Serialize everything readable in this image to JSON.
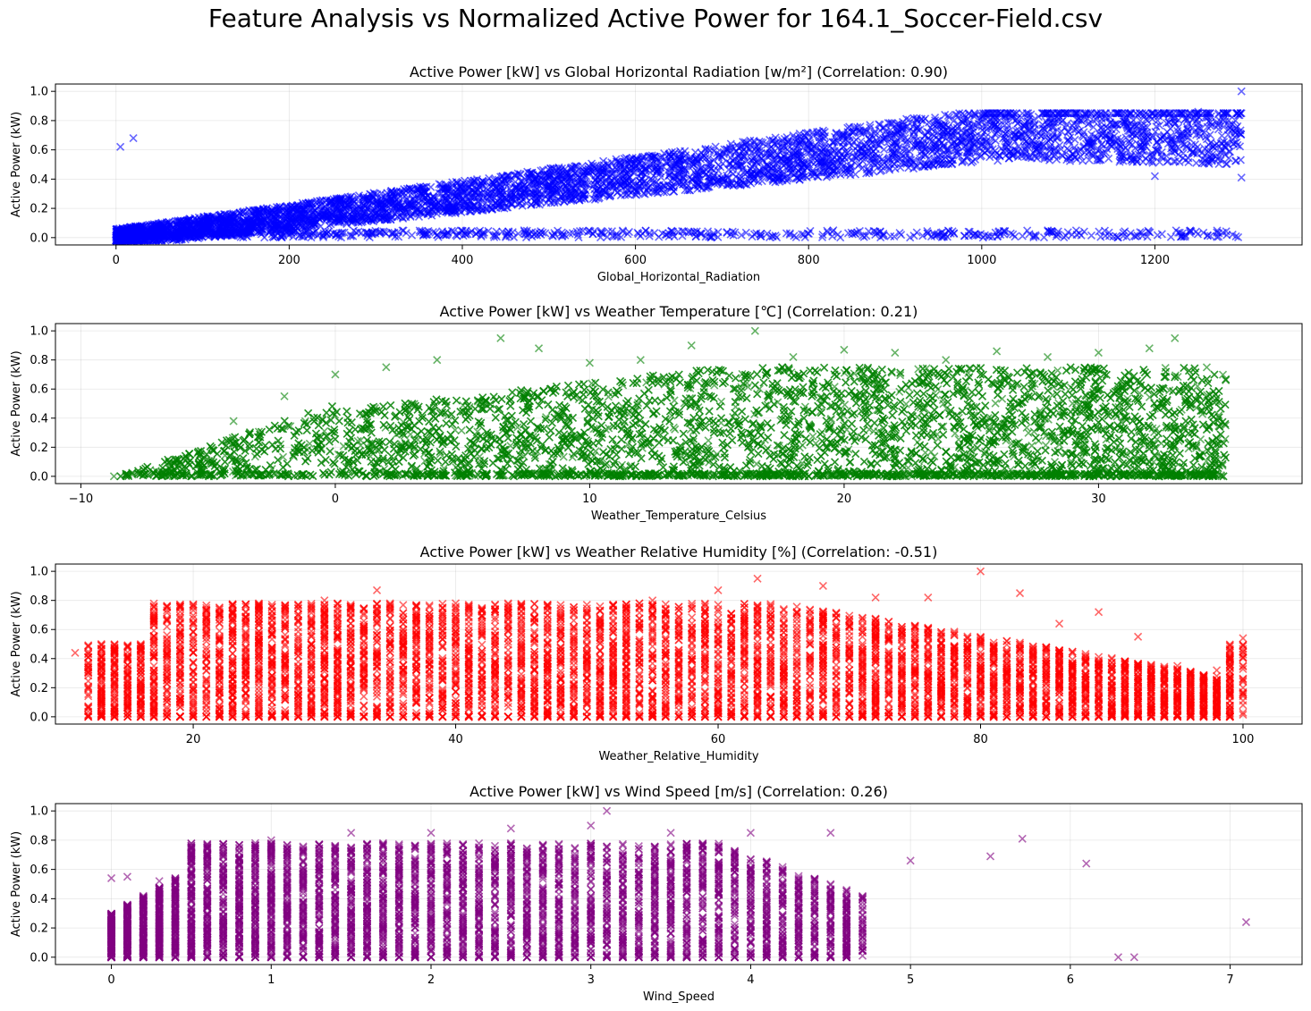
{
  "figure": {
    "suptitle": "Feature Analysis vs Normalized Active Power for 164.1_Soccer-Field.csv"
  },
  "chart_data": [
    {
      "type": "scatter",
      "title": "Active Power [kW] vs Global Horizontal Radiation [w/m²] (Correlation: 0.90)",
      "xlabel": "Global_Horizontal_Radiation",
      "ylabel": "Active Power (kW)",
      "xlim": [
        -70,
        1370
      ],
      "ylim": [
        -0.05,
        1.05
      ],
      "xticks": [
        0,
        200,
        400,
        600,
        800,
        1000,
        1200
      ],
      "yticks": [
        0.0,
        0.2,
        0.4,
        0.6,
        0.8,
        1.0
      ],
      "marker": "x",
      "color": "#0000ff",
      "grid": true,
      "series": [
        {
          "x": [
            0,
            5,
            20,
            50,
            100,
            150,
            200,
            250,
            300,
            350,
            400,
            450,
            500,
            550,
            600,
            650,
            700,
            750,
            800,
            850,
            900,
            950,
            1000,
            1050,
            1100,
            1150,
            1200,
            1250,
            1300,
            1300
          ],
          "y": [
            0.0,
            0.62,
            0.68,
            0.05,
            0.09,
            0.13,
            0.17,
            0.21,
            0.25,
            0.29,
            0.33,
            0.37,
            0.41,
            0.45,
            0.49,
            0.52,
            0.55,
            0.58,
            0.61,
            0.63,
            0.65,
            0.67,
            0.69,
            0.71,
            0.72,
            0.74,
            0.42,
            0.86,
            1.0,
            0.41
          ]
        }
      ]
    },
    {
      "type": "scatter",
      "title": "Active Power [kW] vs Weather Temperature [℃] (Correlation: 0.21)",
      "xlabel": "Weather_Temperature_Celsius",
      "ylabel": "Active Power (kW)",
      "xlim": [
        -11,
        38
      ],
      "ylim": [
        -0.05,
        1.05
      ],
      "xticks": [
        -10,
        0,
        10,
        20,
        30
      ],
      "yticks": [
        0.0,
        0.2,
        0.4,
        0.6,
        0.8,
        1.0
      ],
      "marker": "x",
      "color": "#008000",
      "grid": true,
      "series": [
        {
          "x": [
            -8.7,
            -6,
            -4,
            -2,
            0,
            2,
            4,
            6.5,
            8,
            10,
            12,
            14,
            16.5,
            18,
            20,
            22,
            24,
            26,
            28,
            30,
            32,
            33,
            35
          ],
          "y": [
            0.0,
            0.05,
            0.38,
            0.55,
            0.7,
            0.75,
            0.8,
            0.95,
            0.88,
            0.78,
            0.8,
            0.9,
            1.0,
            0.82,
            0.87,
            0.85,
            0.8,
            0.86,
            0.82,
            0.85,
            0.88,
            0.95,
            0.66
          ]
        }
      ]
    },
    {
      "type": "scatter",
      "title": "Active Power [kW] vs Weather Relative Humidity [%] (Correlation: -0.51)",
      "xlabel": "Weather_Relative_Humidity",
      "ylabel": "Active Power (kW)",
      "xlim": [
        9.5,
        104.5
      ],
      "ylim": [
        -0.05,
        1.05
      ],
      "xticks": [
        20,
        40,
        60,
        80,
        100
      ],
      "yticks": [
        0.0,
        0.2,
        0.4,
        0.6,
        0.8,
        1.0
      ],
      "marker": "x",
      "color": "#ff0000",
      "grid": true,
      "series": [
        {
          "x": [
            11,
            13,
            15,
            17,
            20,
            25,
            30,
            34,
            40,
            45,
            50,
            55,
            60,
            63,
            68,
            72,
            76,
            80,
            83,
            86,
            89,
            92,
            95,
            98,
            100
          ],
          "y": [
            0.44,
            0.5,
            0.0,
            0.7,
            0.76,
            0.78,
            0.8,
            0.87,
            0.78,
            0.77,
            0.77,
            0.8,
            0.87,
            0.95,
            0.9,
            0.82,
            0.82,
            1.0,
            0.85,
            0.64,
            0.72,
            0.55,
            0.35,
            0.32,
            0.54
          ]
        }
      ]
    },
    {
      "type": "scatter",
      "title": "Active Power [kW] vs Wind Speed [m/s] (Correlation: 0.26)",
      "xlabel": "Wind_Speed",
      "ylabel": "Active Power (kW)",
      "xlim": [
        -0.35,
        7.45
      ],
      "ylim": [
        -0.05,
        1.05
      ],
      "xticks": [
        0,
        1,
        2,
        3,
        4,
        5,
        6,
        7
      ],
      "yticks": [
        0.0,
        0.2,
        0.4,
        0.6,
        0.8,
        1.0
      ],
      "marker": "x",
      "color": "#800080",
      "grid": true,
      "series": [
        {
          "x": [
            0,
            0.1,
            0.3,
            0.5,
            1.0,
            1.5,
            2.0,
            2.5,
            3.0,
            3.1,
            3.5,
            4.0,
            4.5,
            5.0,
            5.5,
            5.7,
            6.1,
            6.3,
            6.4,
            7.1
          ],
          "y": [
            0.54,
            0.55,
            0.52,
            0.66,
            0.8,
            0.85,
            0.85,
            0.88,
            0.9,
            1.0,
            0.85,
            0.85,
            0.85,
            0.66,
            0.69,
            0.81,
            0.64,
            0.0,
            0.0,
            0.24
          ]
        }
      ]
    }
  ]
}
